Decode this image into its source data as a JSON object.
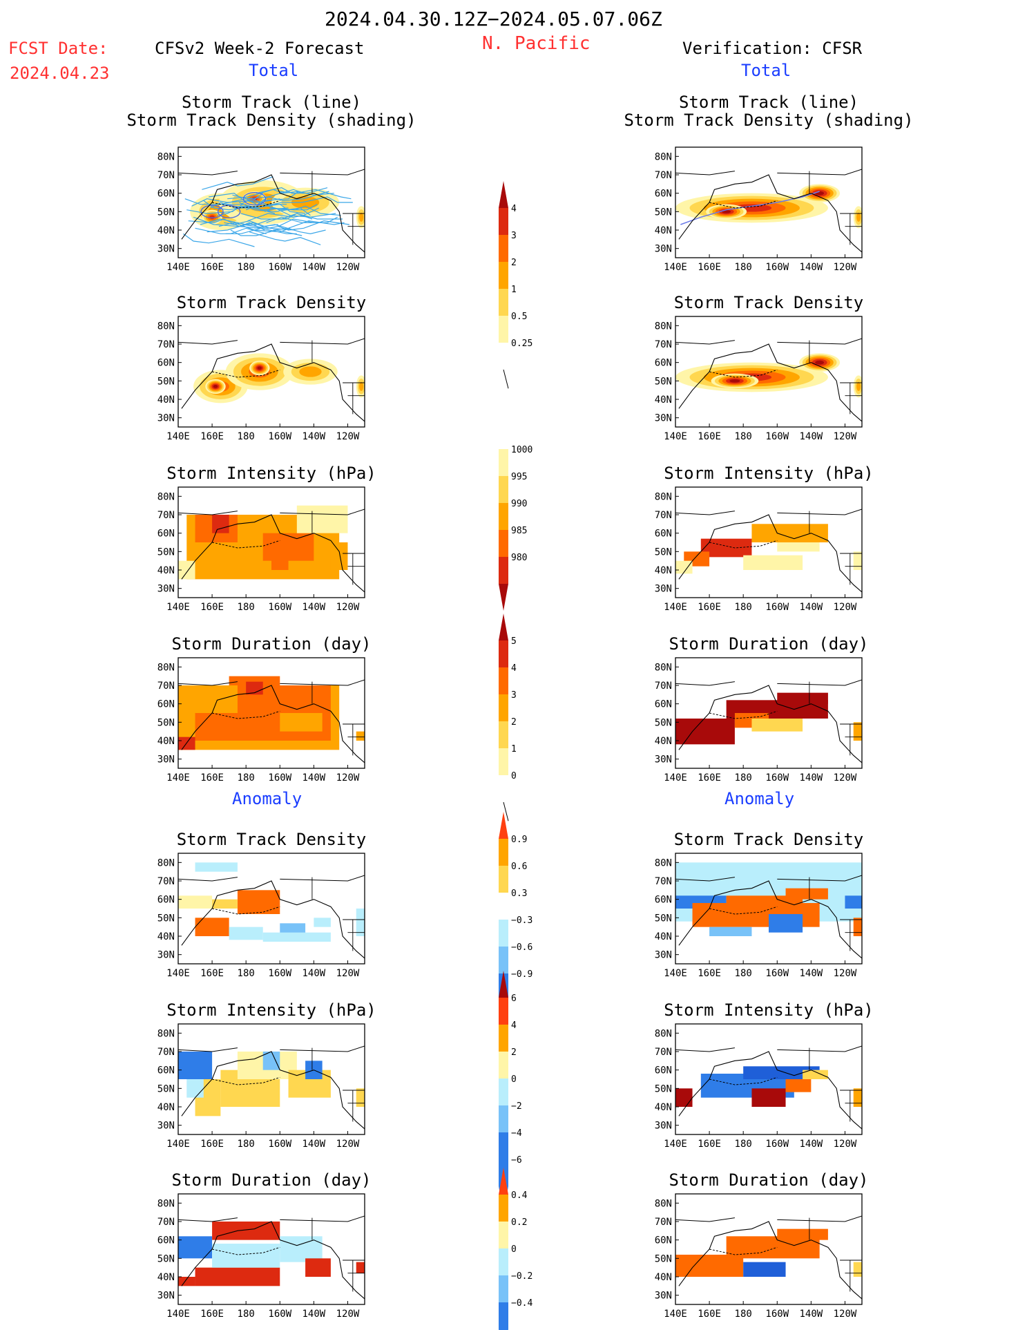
{
  "header": {
    "period": "2024.04.30.12Z−2024.05.07.06Z",
    "region": "N. Pacific",
    "fcst_label": "FCST Date:",
    "fcst_date": "2024.04.23",
    "left_title": "CFSv2 Week-2 Forecast",
    "right_title": "Verification: CFSR",
    "total_label": "Total",
    "anomaly_label": "Anomaly"
  },
  "axes": {
    "lat_ticks": [
      "80N",
      "70N",
      "60N",
      "50N",
      "40N",
      "30N"
    ],
    "lon_ticks": [
      "140E",
      "160E",
      "180",
      "160W",
      "140W",
      "120W"
    ]
  },
  "panel_titles": {
    "track_line": "Storm Track (line)",
    "track_shading": "Storm Track Density (shading)",
    "density": "Storm Track Density",
    "intensity": "Storm Intensity (hPa)",
    "duration": "Storm Duration (day)"
  },
  "colors": {
    "c1": "#fff5a8",
    "c2": "#ffd750",
    "c3": "#ffa500",
    "c4": "#ff6a00",
    "c5": "#dd2a10",
    "c6": "#a80a0a",
    "n1": "#b9eefc",
    "n2": "#78c2f8",
    "n3": "#2f7de8",
    "n4": "#1f5fd8"
  },
  "chart_data": [
    {
      "type": "heatmap",
      "panel": "forecast-total-storm-track",
      "title": "Storm Track (line) / Storm Track Density (shading)",
      "xlim": [
        140,
        250
      ],
      "ylim": [
        25,
        85
      ],
      "blobs": [
        [
          165,
          50,
          18,
          10,
          2
        ],
        [
          190,
          55,
          26,
          12,
          2
        ],
        [
          160,
          47,
          6,
          4,
          4
        ],
        [
          185,
          57,
          7,
          4,
          4
        ],
        [
          215,
          55,
          20,
          8,
          2
        ],
        [
          248,
          47,
          3,
          6,
          2
        ]
      ],
      "tracks": "many storm track lines across 35N-65N"
    },
    {
      "type": "heatmap",
      "panel": "forecast-total-density",
      "title": "Storm Track Density",
      "blobs": [
        [
          165,
          47,
          16,
          9,
          3
        ],
        [
          188,
          55,
          20,
          10,
          3
        ],
        [
          162,
          47,
          6,
          4,
          5
        ],
        [
          188,
          57,
          6,
          4,
          5
        ],
        [
          218,
          55,
          16,
          7,
          2
        ],
        [
          248,
          47,
          3,
          6,
          2
        ]
      ]
    },
    {
      "type": "heatmap",
      "panel": "forecast-total-intensity",
      "title": "Storm Intensity (hPa)",
      "levels": [
        980,
        985,
        990,
        995,
        1000
      ],
      "field": "mostly 985-995 hPa between 35N-70N, 150E-130W; 985 hPa center near 165E,63N; >1000 hPa near 140W,70N"
    },
    {
      "type": "heatmap",
      "panel": "forecast-total-duration",
      "title": "Storm Duration (day)",
      "levels": [
        0,
        1,
        2,
        3,
        4,
        5
      ],
      "field": "3-4 days across 35N-70N, 140E-130W; 4-5 days near 180,67N and 145E,37N"
    },
    {
      "type": "heatmap",
      "panel": "forecast-anomaly-density",
      "title": "Storm Track Density",
      "levels": [
        -0.9,
        -0.6,
        -0.3,
        0.3,
        0.6,
        0.9
      ],
      "field": "positive >0.9 near 160E,45N and 180,57N; negative -0.3 to -0.6 near 160W-140W,45N"
    },
    {
      "type": "heatmap",
      "panel": "forecast-anomaly-intensity",
      "title": "Storm Intensity (hPa)",
      "levels": [
        -6,
        -4,
        -2,
        0,
        2,
        4,
        6
      ],
      "field": "mixed -4 to +4 hPa; negative west of 160E, positive 180-140W"
    },
    {
      "type": "heatmap",
      "panel": "forecast-anomaly-duration",
      "title": "Storm Duration (day)",
      "levels": [
        -0.4,
        -0.2,
        0,
        0.2,
        0.4
      ],
      "field": "+0.4 days 160E-150W,60-70N and 35-45N; -0.4 days 140E-160E,50-60N"
    },
    {
      "type": "heatmap",
      "panel": "verification-total-storm-track",
      "title": "Storm Track (line) / Storm Track Density (shading)",
      "blobs": [
        [
          185,
          52,
          45,
          8,
          4
        ],
        [
          225,
          60,
          12,
          5,
          5
        ],
        [
          170,
          50,
          12,
          4,
          5
        ],
        [
          248,
          47,
          3,
          6,
          2
        ]
      ],
      "tracks": "single band track from 145E,45N to 140W,62N"
    },
    {
      "type": "heatmap",
      "panel": "verification-total-density",
      "title": "Storm Track Density",
      "blobs": [
        [
          185,
          52,
          45,
          8,
          4
        ],
        [
          225,
          60,
          12,
          5,
          5
        ],
        [
          175,
          50,
          14,
          4,
          5
        ],
        [
          248,
          47,
          3,
          6,
          2
        ]
      ]
    },
    {
      "type": "heatmap",
      "panel": "verification-total-intensity",
      "title": "Storm Intensity (hPa)",
      "field": "985 hPa band from 155E,50N to 180,55N; 990-995 hPa 170W-140W,60N; 1000 hPa 180-160W,45N"
    },
    {
      "type": "heatmap",
      "panel": "verification-total-duration",
      "title": "Storm Duration (day)",
      "field": ">5 days band 140E,40N to 140W,65N; 3-4 days near 180,50N"
    },
    {
      "type": "heatmap",
      "panel": "verification-anomaly-density",
      "title": "Storm Track Density",
      "field": ">0.9 band 145E,45N to 140W,62N; -0.6 to -0.9 near 150W,45N and 155E,60N; -0.3 broad north"
    },
    {
      "type": "heatmap",
      "panel": "verification-anomaly-intensity",
      "title": "Storm Intensity (hPa)",
      "field": "-4 to -6 along 160E-140W,50-60N; +6 near 145E,45N and 170W,45N"
    },
    {
      "type": "heatmap",
      "panel": "verification-anomaly-duration",
      "title": "Storm Duration (day)",
      "field": "+0.4 band 140E,45N to 140W,62N; -0.4 near 170W,45N"
    },
    {
      "type": "colorbar",
      "id": "cb-density",
      "labels": [
        "4",
        "3",
        "2",
        "1",
        "0.5",
        "0.25"
      ]
    },
    {
      "type": "colorbar",
      "id": "cb-intensity",
      "labels": [
        "1000",
        "995",
        "990",
        "985",
        "980"
      ]
    },
    {
      "type": "colorbar",
      "id": "cb-duration",
      "labels": [
        "5",
        "4",
        "3",
        "2",
        "1",
        "0"
      ]
    },
    {
      "type": "colorbar",
      "id": "cb-anom-density",
      "labels": [
        "0.9",
        "0.6",
        "0.3",
        "−0.3",
        "−0.6",
        "−0.9"
      ]
    },
    {
      "type": "colorbar",
      "id": "cb-anom-intensity",
      "labels": [
        "6",
        "4",
        "2",
        "0",
        "−2",
        "−4",
        "−6"
      ]
    },
    {
      "type": "colorbar",
      "id": "cb-anom-duration",
      "labels": [
        "0.4",
        "0.2",
        "0",
        "−0.2",
        "−0.4"
      ]
    }
  ]
}
